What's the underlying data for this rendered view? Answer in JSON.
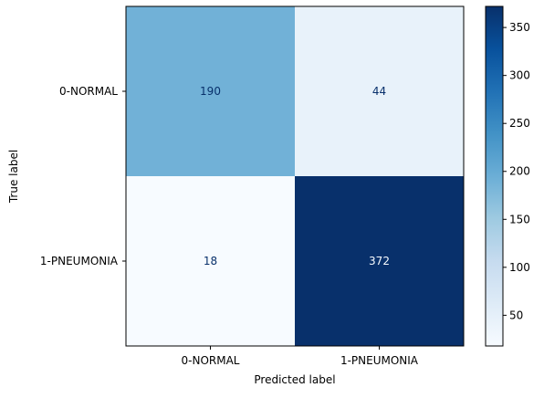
{
  "chart_data": {
    "type": "heatmap",
    "xlabel": "Predicted label",
    "ylabel": "True label",
    "x_categories": [
      "0-NORMAL",
      "1-PNEUMONIA"
    ],
    "y_categories": [
      "0-NORMAL",
      "1-PNEUMONIA"
    ],
    "values": [
      [
        190,
        44
      ],
      [
        18,
        372
      ]
    ],
    "colormap": "Blues",
    "colorbar": {
      "range": [
        18,
        372
      ],
      "ticks": [
        50,
        100,
        150,
        200,
        250,
        300,
        350
      ]
    }
  }
}
